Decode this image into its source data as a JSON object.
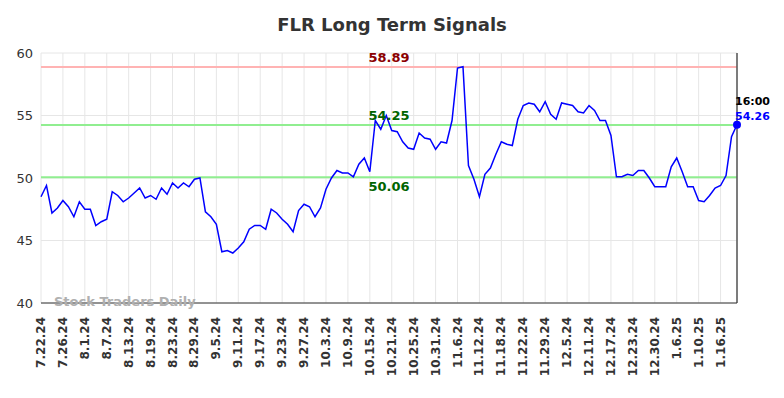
{
  "chart_data": {
    "type": "line",
    "title": "FLR Long Term Signals",
    "watermark": "Stock Traders Daily",
    "time_label": "16:00",
    "color": "#0000ff",
    "grid": true,
    "ylim": [
      40,
      60
    ],
    "yticks": [
      40,
      45,
      50,
      55,
      60
    ],
    "categories": [
      "7.22.24",
      null,
      null,
      null,
      "7.26.24",
      null,
      null,
      null,
      "8.1.24",
      null,
      null,
      null,
      "8.7.24",
      null,
      null,
      null,
      "8.13.24",
      null,
      null,
      null,
      "8.19.24",
      null,
      null,
      null,
      "8.23.24",
      null,
      null,
      null,
      "8.29.24",
      null,
      null,
      null,
      "9.5.24",
      null,
      null,
      null,
      "9.11.24",
      null,
      null,
      null,
      "9.17.24",
      null,
      null,
      null,
      "9.23.24",
      null,
      null,
      null,
      "9.27.24",
      null,
      null,
      null,
      "10.3.24",
      null,
      null,
      null,
      "10.9.24",
      null,
      null,
      null,
      "10.15.24",
      null,
      null,
      null,
      "10.21.24",
      null,
      null,
      null,
      "10.25.24",
      null,
      null,
      null,
      "10.31.24",
      null,
      null,
      null,
      "11.6.24",
      null,
      null,
      null,
      "11.12.24",
      null,
      null,
      null,
      "11.18.24",
      null,
      null,
      null,
      "11.22.24",
      null,
      null,
      null,
      "11.29.24",
      null,
      null,
      null,
      "12.5.24",
      null,
      null,
      null,
      "12.11.24",
      null,
      null,
      null,
      "12.17.24",
      null,
      null,
      null,
      "12.23.24",
      null,
      null,
      null,
      "12.30.24",
      null,
      null,
      null,
      "1.6.25",
      null,
      null,
      null,
      "1.10.25",
      null,
      null,
      null,
      "1.16.25",
      null,
      null,
      null
    ],
    "values": [
      48.5,
      49.4,
      47.2,
      47.6,
      48.2,
      47.7,
      46.9,
      48.1,
      47.5,
      47.5,
      46.2,
      46.5,
      46.7,
      48.9,
      48.6,
      48.1,
      48.4,
      48.8,
      49.2,
      48.4,
      48.6,
      48.3,
      49.2,
      48.7,
      49.6,
      49.2,
      49.6,
      49.3,
      49.9,
      50.0,
      47.3,
      46.9,
      46.3,
      44.1,
      44.2,
      44.0,
      44.4,
      44.9,
      45.9,
      46.2,
      46.2,
      45.9,
      47.5,
      47.2,
      46.7,
      46.3,
      45.7,
      47.4,
      47.9,
      47.7,
      46.9,
      47.6,
      49.1,
      50.0,
      50.6,
      50.4,
      50.4,
      50.1,
      51.1,
      51.6,
      50.5,
      54.6,
      53.9,
      55.0,
      53.8,
      53.7,
      52.9,
      52.4,
      52.3,
      53.6,
      53.2,
      53.1,
      52.3,
      52.9,
      52.8,
      54.6,
      58.8,
      58.9,
      51.0,
      49.9,
      48.5,
      50.3,
      50.8,
      51.9,
      52.9,
      52.7,
      52.6,
      54.7,
      55.8,
      56.0,
      55.9,
      55.3,
      56.1,
      55.1,
      54.7,
      56.0,
      55.9,
      55.8,
      55.3,
      55.2,
      55.8,
      55.4,
      54.6,
      54.6,
      53.4,
      50.1,
      50.1,
      50.3,
      50.2,
      50.6,
      50.6,
      50.0,
      49.3,
      49.3,
      49.3,
      50.9,
      51.6,
      50.5,
      49.3,
      49.3,
      48.2,
      48.1,
      48.6,
      49.2,
      49.4,
      50.2,
      53.3,
      54.26
    ],
    "reference_lines": [
      {
        "value": 58.89,
        "color": "#ffb3b3"
      },
      {
        "value": 54.25,
        "color": "#90ee90"
      },
      {
        "value": 50.06,
        "color": "#90ee90"
      }
    ]
  }
}
